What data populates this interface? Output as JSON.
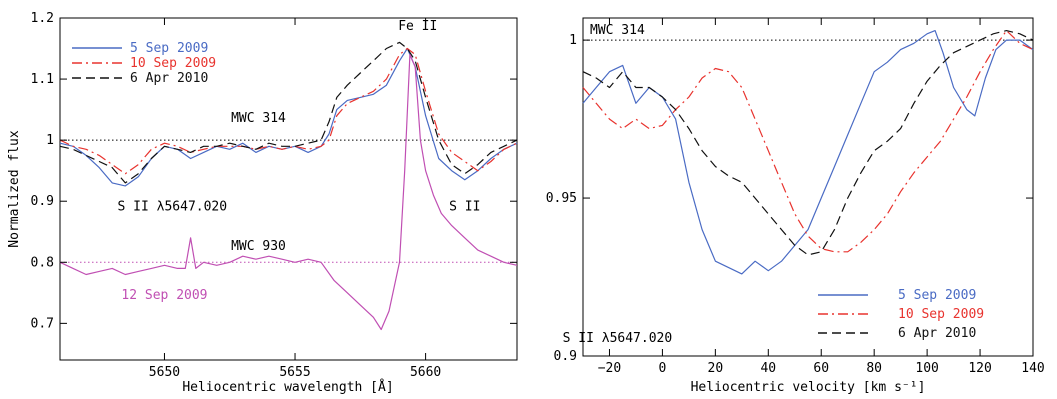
{
  "chart_data": [
    {
      "type": "line",
      "title": "",
      "xlabel": "Heliocentric wavelength [Å]",
      "ylabel": "Normalized flux",
      "xlim": [
        5646,
        5663.5
      ],
      "ylim": [
        0.64,
        1.2
      ],
      "xticks": [
        5650,
        5655,
        5660
      ],
      "yticks": [
        0.7,
        0.8,
        0.9,
        1,
        1.1,
        1.2
      ],
      "grid": false,
      "legend_position": "top-left",
      "reference_lines": [
        {
          "y": 1.0,
          "style": "dotted",
          "color": "#000000"
        },
        {
          "y": 0.8,
          "style": "dotted",
          "color": "#c04fb3"
        }
      ],
      "annotations": [
        {
          "text": "Fe II",
          "x": 5659.7,
          "y": 1.18
        },
        {
          "text": "MWC 314",
          "x": 5653.6,
          "y": 1.03
        },
        {
          "text": "S II λ5647.020",
          "x": 5650.3,
          "y": 0.885
        },
        {
          "text": "S II",
          "x": 5661.5,
          "y": 0.885
        },
        {
          "text": "MWC 930",
          "x": 5653.6,
          "y": 0.82
        },
        {
          "text": "12 Sep 2009",
          "x": 5650.0,
          "y": 0.74
        }
      ],
      "series": [
        {
          "name": "5 Sep 2009",
          "color": "#4a6bc4",
          "dash": "solid",
          "x": [
            5646,
            5646.5,
            5647,
            5647.5,
            5648,
            5648.5,
            5649,
            5649.5,
            5650,
            5650.5,
            5651,
            5651.5,
            5652,
            5652.5,
            5653,
            5653.5,
            5654,
            5654.5,
            5655,
            5655.5,
            5656,
            5656.3,
            5656.6,
            5657,
            5657.5,
            5658,
            5658.5,
            5659,
            5659.3,
            5659.6,
            5660,
            5660.5,
            5661,
            5661.5,
            5662,
            5662.5,
            5663,
            5663.5
          ],
          "y": [
            0.995,
            0.99,
            0.975,
            0.955,
            0.93,
            0.925,
            0.94,
            0.97,
            0.99,
            0.985,
            0.97,
            0.98,
            0.99,
            0.985,
            0.995,
            0.98,
            0.99,
            0.985,
            0.99,
            0.98,
            0.99,
            1.01,
            1.05,
            1.065,
            1.07,
            1.075,
            1.09,
            1.13,
            1.15,
            1.12,
            1.04,
            0.97,
            0.95,
            0.935,
            0.95,
            0.97,
            0.985,
            0.995
          ]
        },
        {
          "name": "10 Sep 2009",
          "color": "#e8332e",
          "dash": "dashdot",
          "x": [
            5646,
            5646.5,
            5647,
            5647.5,
            5648,
            5648.5,
            5649,
            5649.5,
            5650,
            5650.5,
            5651,
            5651.5,
            5652,
            5652.5,
            5653,
            5653.5,
            5654,
            5654.5,
            5655,
            5655.5,
            5656,
            5656.3,
            5656.6,
            5657,
            5657.5,
            5658,
            5658.5,
            5659,
            5659.3,
            5659.6,
            5660,
            5660.5,
            5661,
            5661.5,
            5662,
            5662.5,
            5663,
            5663.5
          ],
          "y": [
            1.0,
            0.99,
            0.985,
            0.975,
            0.96,
            0.945,
            0.96,
            0.985,
            0.995,
            0.99,
            0.98,
            0.985,
            0.99,
            0.99,
            0.99,
            0.985,
            0.99,
            0.985,
            0.99,
            0.985,
            0.99,
            1.0,
            1.04,
            1.06,
            1.07,
            1.08,
            1.1,
            1.14,
            1.15,
            1.14,
            1.08,
            1.01,
            0.98,
            0.965,
            0.95,
            0.965,
            0.985,
            0.995
          ]
        },
        {
          "name": "6 Apr 2010",
          "color": "#111111",
          "dash": "dashed",
          "x": [
            5646,
            5646.5,
            5647,
            5647.5,
            5648,
            5648.5,
            5649,
            5649.5,
            5650,
            5650.5,
            5651,
            5651.5,
            5652,
            5652.5,
            5653,
            5653.5,
            5654,
            5654.5,
            5655,
            5655.5,
            5656,
            5656.3,
            5656.6,
            5657,
            5657.5,
            5658,
            5658.5,
            5659,
            5659.3,
            5659.6,
            5660,
            5660.5,
            5661,
            5661.5,
            5662,
            5662.5,
            5663,
            5663.5
          ],
          "y": [
            0.99,
            0.985,
            0.975,
            0.965,
            0.955,
            0.93,
            0.945,
            0.97,
            0.99,
            0.985,
            0.98,
            0.99,
            0.99,
            0.995,
            0.99,
            0.985,
            0.995,
            0.99,
            0.99,
            0.995,
            1.0,
            1.03,
            1.07,
            1.09,
            1.11,
            1.13,
            1.15,
            1.16,
            1.15,
            1.13,
            1.07,
            1.0,
            0.96,
            0.945,
            0.96,
            0.98,
            0.99,
            1.0
          ]
        },
        {
          "name": "12 Sep 2009",
          "color": "#c04fb3",
          "dash": "solid",
          "x": [
            5646,
            5646.5,
            5647,
            5647.5,
            5648,
            5648.5,
            5649,
            5649.5,
            5650,
            5650.5,
            5650.8,
            5651,
            5651.2,
            5651.5,
            5652,
            5652.5,
            5653,
            5653.5,
            5654,
            5654.5,
            5655,
            5655.5,
            5656,
            5656.5,
            5657,
            5657.5,
            5658,
            5658.3,
            5658.6,
            5659,
            5659.2,
            5659.4,
            5659.6,
            5659.8,
            5660,
            5660.3,
            5660.6,
            5661,
            5661.5,
            5662,
            5662.5,
            5663,
            5663.5
          ],
          "y": [
            0.8,
            0.79,
            0.78,
            0.785,
            0.79,
            0.78,
            0.785,
            0.79,
            0.795,
            0.79,
            0.79,
            0.84,
            0.79,
            0.8,
            0.795,
            0.8,
            0.81,
            0.805,
            0.81,
            0.805,
            0.8,
            0.805,
            0.8,
            0.77,
            0.75,
            0.73,
            0.71,
            0.69,
            0.72,
            0.8,
            0.95,
            1.14,
            1.12,
            1.0,
            0.95,
            0.91,
            0.88,
            0.86,
            0.84,
            0.82,
            0.81,
            0.8,
            0.795
          ]
        }
      ]
    },
    {
      "type": "line",
      "title": "",
      "xlabel": "Heliocentric velocity [km s⁻¹]",
      "ylabel": "",
      "xlim": [
        -30,
        140
      ],
      "ylim": [
        0.9,
        1.007
      ],
      "xticks": [
        -20,
        0,
        20,
        40,
        60,
        80,
        100,
        120,
        140
      ],
      "yticks": [
        0.9,
        0.95,
        1
      ],
      "grid": false,
      "legend_position": "bottom-right",
      "reference_lines": [
        {
          "y": 1.0,
          "style": "dotted",
          "color": "#000000"
        }
      ],
      "annotations": [
        {
          "text": "MWC 314",
          "x": -17,
          "y": 1.002
        },
        {
          "text": "S II λ5647.020",
          "x": -17,
          "y": 0.9045
        }
      ],
      "series": [
        {
          "name": "5 Sep 2009",
          "color": "#4a6bc4",
          "dash": "solid",
          "x": [
            -30,
            -25,
            -20,
            -15,
            -10,
            -5,
            0,
            5,
            10,
            15,
            20,
            25,
            30,
            35,
            40,
            45,
            50,
            55,
            60,
            65,
            70,
            75,
            80,
            85,
            90,
            95,
            100,
            103,
            106,
            110,
            115,
            118,
            122,
            126,
            130,
            135,
            140
          ],
          "y": [
            0.98,
            0.985,
            0.99,
            0.992,
            0.98,
            0.985,
            0.982,
            0.975,
            0.955,
            0.94,
            0.93,
            0.928,
            0.926,
            0.93,
            0.927,
            0.93,
            0.935,
            0.94,
            0.95,
            0.96,
            0.97,
            0.98,
            0.99,
            0.993,
            0.997,
            0.999,
            1.002,
            1.003,
            0.996,
            0.985,
            0.978,
            0.976,
            0.988,
            0.997,
            1.0,
            1.0,
            0.997
          ]
        },
        {
          "name": "10 Sep 2009",
          "color": "#e8332e",
          "dash": "dashdot",
          "x": [
            -30,
            -25,
            -20,
            -15,
            -10,
            -5,
            0,
            5,
            10,
            15,
            20,
            25,
            30,
            35,
            40,
            45,
            50,
            55,
            60,
            65,
            70,
            75,
            80,
            85,
            90,
            95,
            100,
            105,
            110,
            115,
            120,
            125,
            130,
            135,
            140
          ],
          "y": [
            0.985,
            0.98,
            0.975,
            0.972,
            0.975,
            0.972,
            0.973,
            0.978,
            0.982,
            0.988,
            0.991,
            0.99,
            0.985,
            0.975,
            0.965,
            0.955,
            0.945,
            0.938,
            0.934,
            0.933,
            0.933,
            0.936,
            0.94,
            0.945,
            0.952,
            0.958,
            0.963,
            0.968,
            0.975,
            0.982,
            0.99,
            0.997,
            1.003,
            0.999,
            0.997
          ]
        },
        {
          "name": "6 Apr 2010",
          "color": "#111111",
          "dash": "dashed",
          "x": [
            -30,
            -25,
            -20,
            -15,
            -10,
            -5,
            0,
            5,
            10,
            15,
            20,
            25,
            30,
            35,
            40,
            45,
            50,
            55,
            60,
            65,
            70,
            75,
            80,
            85,
            90,
            95,
            100,
            105,
            110,
            115,
            120,
            125,
            130,
            135,
            140
          ],
          "y": [
            0.99,
            0.988,
            0.985,
            0.99,
            0.985,
            0.985,
            0.982,
            0.978,
            0.972,
            0.965,
            0.96,
            0.957,
            0.955,
            0.95,
            0.945,
            0.94,
            0.935,
            0.932,
            0.933,
            0.94,
            0.95,
            0.958,
            0.965,
            0.968,
            0.972,
            0.98,
            0.987,
            0.992,
            0.996,
            0.998,
            1.0,
            1.002,
            1.003,
            1.002,
            1.0
          ]
        }
      ]
    }
  ]
}
